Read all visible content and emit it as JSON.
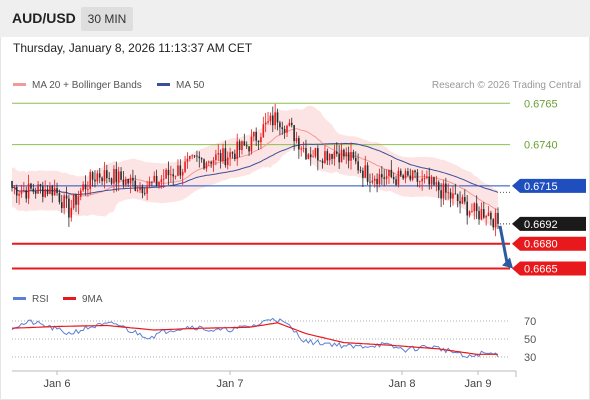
{
  "header": {
    "symbol": "AUD/USD",
    "timeframe": "30 MIN",
    "datetime": "Thursday, January 8, 2026 11:13:37 AM CET"
  },
  "legend": {
    "ma20_label": "MA 20 + Bollinger Bands",
    "ma50_label": "MA 50",
    "credit": "Research © 2026 Trading Central",
    "rsi_label": "RSI",
    "rsi_ma_label": "9MA"
  },
  "colors": {
    "bull": "#e8191c",
    "bear": "#2a2a2a",
    "ma20": "#f29a9a",
    "band": "#fde4e4",
    "ma50": "#3a4f9a",
    "resistance": "#8cc04e",
    "pivot": "#1f4fbf",
    "support": "#e8191c",
    "arrow": "#2c5aa0",
    "rsi": "#5b7fd6",
    "rsi_ma": "#e8191c"
  },
  "chart_data": [
    {
      "type": "candlestick",
      "ylim": [
        0.6655,
        0.677
      ],
      "x_ticks": [
        "Jan 6",
        "Jan 7",
        "Jan 8",
        "Jan 9"
      ],
      "current_price": "0.6692",
      "levels": [
        {
          "label": "0.6765",
          "value": 0.6765,
          "kind": "resistance"
        },
        {
          "label": "0.6740",
          "value": 0.674,
          "kind": "resistance"
        },
        {
          "label": "0.6715",
          "value": 0.6715,
          "kind": "pivot"
        },
        {
          "label": "0.6680",
          "value": 0.668,
          "kind": "support"
        },
        {
          "label": "0.6665",
          "value": 0.6665,
          "kind": "support"
        }
      ],
      "forecast": {
        "from": 0.6692,
        "to": 0.6665,
        "direction": "down"
      },
      "close_anchors": [
        [
          0,
          0.6714
        ],
        [
          6,
          0.6712
        ],
        [
          12,
          0.6713
        ],
        [
          18,
          0.6713
        ],
        [
          24,
          0.67
        ],
        [
          30,
          0.6714
        ],
        [
          36,
          0.6722
        ],
        [
          42,
          0.6721
        ],
        [
          48,
          0.6718
        ],
        [
          54,
          0.6715
        ],
        [
          60,
          0.6716
        ],
        [
          66,
          0.6722
        ],
        [
          72,
          0.6726
        ],
        [
          78,
          0.673
        ],
        [
          90,
          0.6733
        ],
        [
          100,
          0.674
        ],
        [
          106,
          0.675
        ],
        [
          112,
          0.6757
        ],
        [
          118,
          0.6748
        ],
        [
          124,
          0.6736
        ],
        [
          130,
          0.6734
        ],
        [
          136,
          0.6736
        ],
        [
          142,
          0.6732
        ],
        [
          150,
          0.6722
        ],
        [
          160,
          0.672
        ],
        [
          170,
          0.6719
        ],
        [
          180,
          0.6713
        ],
        [
          190,
          0.6704
        ],
        [
          196,
          0.6698
        ],
        [
          200,
          0.67
        ],
        [
          205,
          0.6692
        ]
      ]
    },
    {
      "type": "line",
      "title": "RSI",
      "ylim": [
        20,
        80
      ],
      "y_ticks": [
        70,
        50,
        30
      ],
      "rsi_anchors": [
        [
          0,
          63
        ],
        [
          8,
          69
        ],
        [
          16,
          63
        ],
        [
          24,
          56
        ],
        [
          34,
          64
        ],
        [
          44,
          67
        ],
        [
          50,
          59
        ],
        [
          58,
          52
        ],
        [
          66,
          60
        ],
        [
          76,
          64
        ],
        [
          86,
          59
        ],
        [
          96,
          62
        ],
        [
          104,
          66
        ],
        [
          110,
          74
        ],
        [
          116,
          66
        ],
        [
          124,
          47
        ],
        [
          134,
          45
        ],
        [
          144,
          41
        ],
        [
          156,
          44
        ],
        [
          166,
          38
        ],
        [
          176,
          42
        ],
        [
          186,
          36
        ],
        [
          192,
          29
        ],
        [
          198,
          34
        ],
        [
          205,
          33
        ]
      ],
      "rsi_ma_anchors": [
        [
          0,
          62
        ],
        [
          20,
          64
        ],
        [
          40,
          65
        ],
        [
          60,
          60
        ],
        [
          80,
          62
        ],
        [
          100,
          63
        ],
        [
          112,
          68
        ],
        [
          124,
          56
        ],
        [
          140,
          46
        ],
        [
          160,
          43
        ],
        [
          180,
          39
        ],
        [
          196,
          33
        ],
        [
          205,
          33
        ]
      ]
    }
  ]
}
